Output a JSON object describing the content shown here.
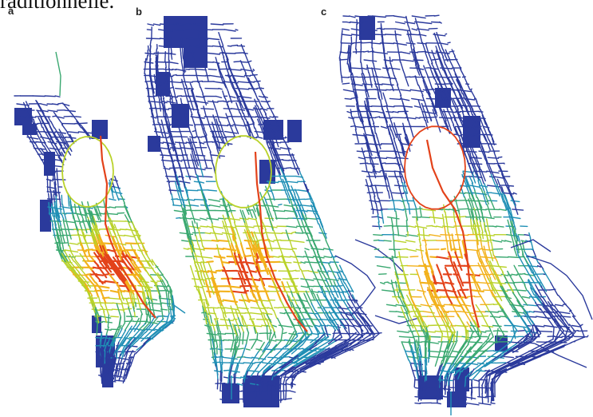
{
  "header": {
    "text": "raditionnelle."
  },
  "panels": [
    {
      "label": "a"
    },
    {
      "label": "b"
    },
    {
      "label": "c"
    }
  ],
  "colors": {
    "low": "#2b3a9c",
    "low_mid": "#1f8fb5",
    "mid": "#3aa870",
    "mid_high": "#b9d22a",
    "high_mid": "#f2b11b",
    "high": "#e3421a"
  }
}
